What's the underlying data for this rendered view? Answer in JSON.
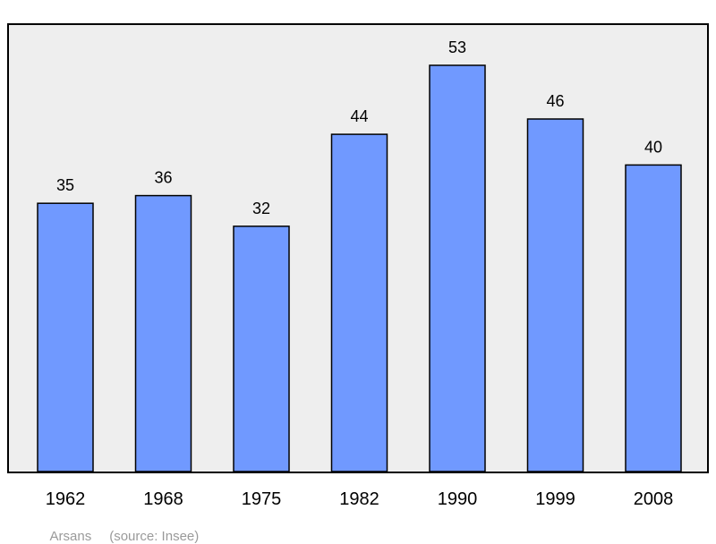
{
  "chart_data": {
    "type": "bar",
    "categories": [
      "1962",
      "1968",
      "1975",
      "1982",
      "1990",
      "1999",
      "2008"
    ],
    "values": [
      35,
      36,
      32,
      44,
      53,
      46,
      40
    ],
    "title": "",
    "xlabel": "",
    "ylabel": "",
    "grid": false,
    "colors": {
      "bar": "#7099ff",
      "plot_background": "#eeeeee",
      "bar_border": "#000000"
    }
  },
  "caption": {
    "place": "Arsans",
    "source": "(source: Insee)"
  }
}
